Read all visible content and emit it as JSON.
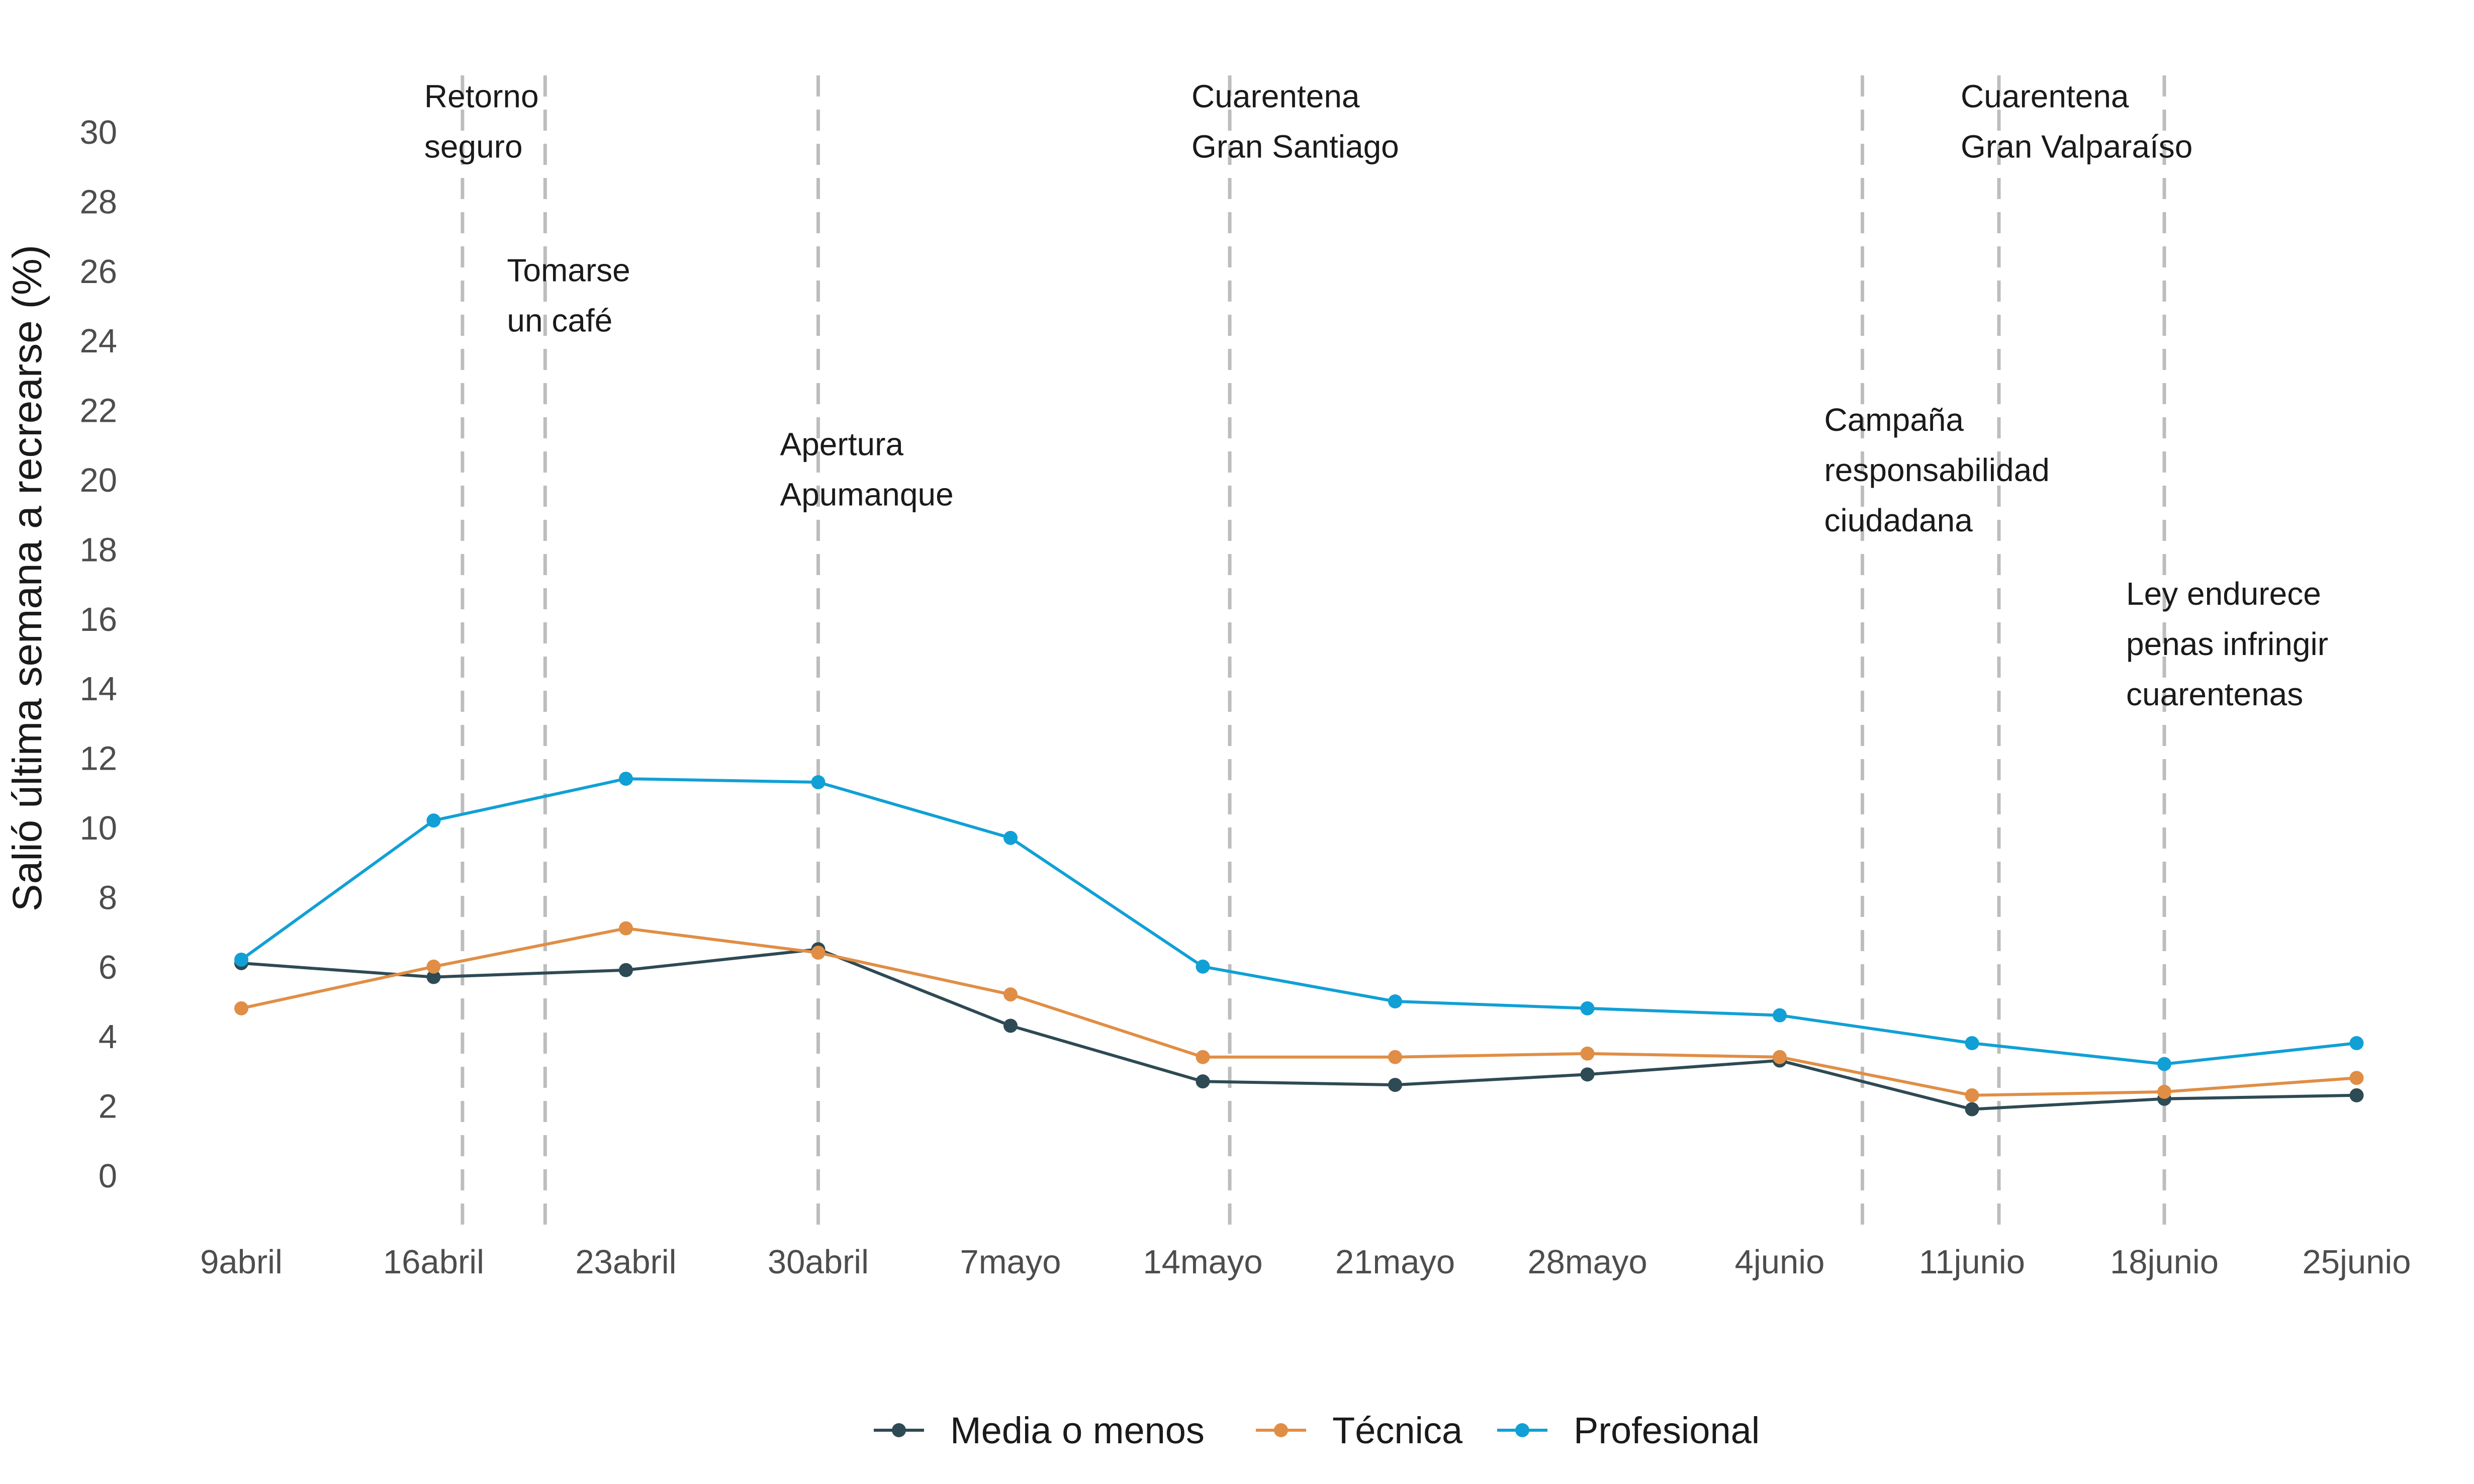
{
  "chart_data": {
    "type": "line",
    "title": "",
    "xlabel": "",
    "ylabel": "Salió última semana a recrearse (%)",
    "categories": [
      "9abril",
      "16abril",
      "23abril",
      "30abril",
      "7mayo",
      "14mayo",
      "21mayo",
      "28mayo",
      "4junio",
      "11junio",
      "18junio",
      "25junio"
    ],
    "ylim": [
      0,
      30
    ],
    "yticks": [
      0,
      2,
      4,
      6,
      8,
      10,
      12,
      14,
      16,
      18,
      20,
      22,
      24,
      26,
      28,
      30
    ],
    "grid": false,
    "legend_position": "bottom",
    "series": [
      {
        "name": "Media o menos",
        "color": "#2e4a54",
        "values": [
          6.1,
          5.7,
          5.9,
          6.5,
          4.3,
          2.7,
          2.6,
          2.9,
          3.3,
          1.9,
          2.2,
          2.3
        ]
      },
      {
        "name": "Técnica",
        "color": "#e08e45",
        "values": [
          4.8,
          6.0,
          7.1,
          6.4,
          5.2,
          3.4,
          3.4,
          3.5,
          3.4,
          2.3,
          2.4,
          2.8
        ]
      },
      {
        "name": "Profesional",
        "color": "#11a0d5",
        "values": [
          6.2,
          10.2,
          11.4,
          11.3,
          9.7,
          6.0,
          5.0,
          4.8,
          4.6,
          3.8,
          3.2,
          3.8
        ]
      }
    ],
    "events": [
      {
        "x": 1.15,
        "lines": [
          "Retorno",
          "seguro"
        ],
        "level": 30.7
      },
      {
        "x": 1.58,
        "lines": [
          "Tomarse",
          "un café"
        ],
        "level": 25.7
      },
      {
        "x": 3.0,
        "lines": [
          "Apertura",
          "Apumanque"
        ],
        "level": 20.7
      },
      {
        "x": 5.14,
        "lines": [
          "Cuarentena",
          "Gran Santiago"
        ],
        "level": 30.7
      },
      {
        "x": 8.43,
        "lines": [
          "Campaña",
          "responsabilidad",
          "ciudadana"
        ],
        "level": 21.4
      },
      {
        "x": 9.14,
        "lines": [
          "Cuarentena",
          "Gran Valparaíso"
        ],
        "level": 30.7
      },
      {
        "x": 10.0,
        "lines": [
          "Ley endurece",
          "penas infringir",
          "cuarentenas"
        ],
        "level": 16.4
      }
    ]
  }
}
